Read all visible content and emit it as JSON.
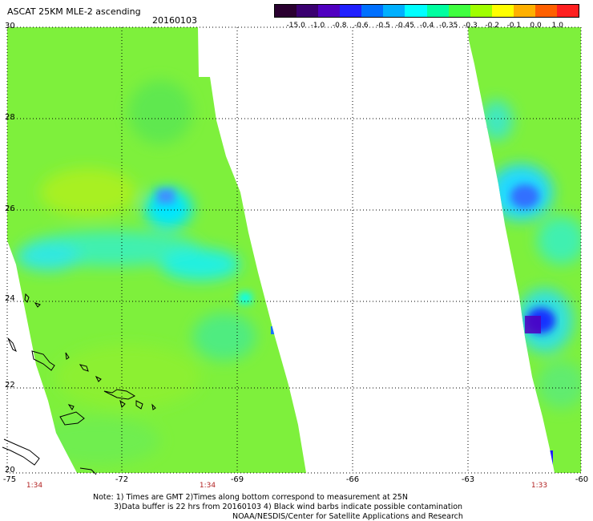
{
  "header": {
    "title": "ASCAT 25KM MLE-2 ascending",
    "date": "20160103"
  },
  "colorbar": {
    "labels": [
      "-15.0",
      "-1.0",
      "-0.8",
      "-0.6",
      "-0.5",
      "-0.45",
      "-0.4",
      "-0.35",
      "-0.3",
      "-0.2",
      "-0.1",
      "0.0",
      "1.0"
    ],
    "colors": [
      "#2a0030",
      "#3a0070",
      "#5000c0",
      "#2020ff",
      "#0070ff",
      "#00b0ff",
      "#00ffff",
      "#00ffa0",
      "#40ff40",
      "#a0ff00",
      "#ffff00",
      "#ffb000",
      "#ff6000",
      "#ff2020"
    ]
  },
  "map": {
    "lat_labels": [
      "30",
      "28",
      "26",
      "24",
      "22",
      "20"
    ],
    "lon_labels": [
      "-75",
      "-72",
      "-69",
      "-66",
      "-63",
      "-60"
    ],
    "lon_range": [
      -75,
      -60
    ],
    "lat_range": [
      20,
      30
    ],
    "swath_times": [
      {
        "lon": -74.4,
        "text": "1:34"
      },
      {
        "lon": -70.8,
        "text": "1:34"
      },
      {
        "lon": -61.8,
        "text": "1:33"
      }
    ]
  },
  "notes": {
    "line1": "Note: 1) Times are GMT 2)Times along bottom correspond to measurement at 25N",
    "line2": "3)Data buffer is 22 hrs from 20160103 4) Black wind barbs indicate possible contamination",
    "line3": "NOAA/NESDIS/Center for Satellite Applications and Research"
  }
}
